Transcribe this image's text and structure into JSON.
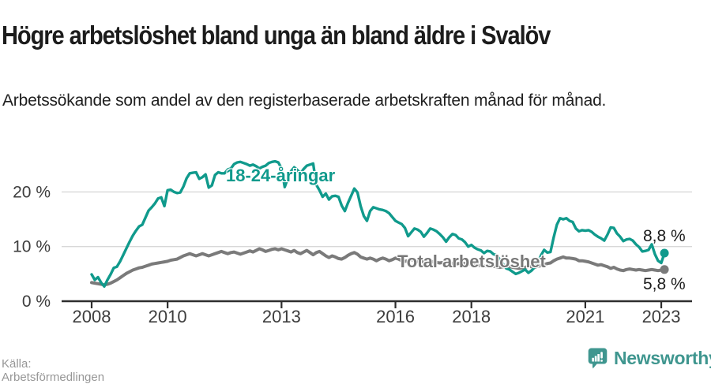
{
  "header": {
    "title": "Högre arbetslöshet bland unga än bland äldre i Svalöv",
    "subtitle": "Arbetssökande som andel av den registerbaserade arbetskraften månad för månad."
  },
  "footer": {
    "source": "Källa: Arbetsförmedlingen",
    "logo_text": "Newsworthy"
  },
  "colors": {
    "teal": "#109a8c",
    "gray": "#7a7a7a",
    "grid": "#d8d8d8",
    "axis": "#2e2e2e",
    "tick_text": "#3d3d3d",
    "logo_teal": "#3f968f"
  },
  "chart_data": {
    "type": "line",
    "title": "Högre arbetslöshet bland unga än bland äldre i Svalöv",
    "subtitle": "Arbetssökande som andel av den registerbaserade arbetskraften månad för månad.",
    "unit": "%",
    "x_start_year": 2008,
    "x_start_month": 1,
    "frequency": "monthly",
    "x_ticks": [
      "2008",
      "2010",
      "2013",
      "2016",
      "2018",
      "2021",
      "2023"
    ],
    "y_ticks": [
      {
        "value": 0,
        "label": "0 %"
      },
      {
        "value": 10,
        "label": "10 %"
      },
      {
        "value": 20,
        "label": "20 %"
      }
    ],
    "ylim": [
      0,
      27
    ],
    "grid": "horizontal-only",
    "legend_position": "inline-on-chart",
    "series": [
      {
        "name": "18-24-åringar",
        "color": "#109a8c",
        "end_value": 8.8,
        "end_label": "8,8 %",
        "values": [
          4.9,
          3.9,
          4.4,
          3.4,
          2.7,
          3.9,
          4.9,
          6.1,
          6.3,
          7.3,
          8.5,
          9.7,
          10.9,
          12.0,
          12.9,
          13.7,
          14.0,
          15.3,
          16.6,
          17.2,
          17.9,
          18.8,
          19.0,
          17.4,
          20.3,
          20.4,
          20.0,
          19.8,
          19.9,
          21.0,
          22.5,
          23.4,
          23.5,
          23.6,
          22.4,
          22.7,
          23.2,
          20.8,
          21.2,
          23.1,
          23.6,
          23.4,
          23.4,
          24.1,
          24.3,
          25.1,
          25.4,
          25.5,
          25.3,
          25.1,
          24.8,
          25.0,
          24.7,
          24.3,
          24.6,
          24.8,
          25.3,
          25.5,
          25.6,
          25.4,
          24.3,
          20.9,
          22.5,
          23.8,
          24.5,
          24.0,
          23.4,
          24.2,
          24.8,
          25.0,
          25.2,
          21.3,
          20.3,
          19.1,
          19.7,
          18.6,
          19.2,
          19.3,
          19.1,
          17.5,
          16.5,
          18.0,
          19.3,
          20.6,
          19.9,
          17.4,
          15.6,
          14.7,
          16.5,
          17.2,
          17.0,
          16.8,
          16.7,
          16.5,
          16.1,
          15.4,
          14.7,
          14.4,
          14.1,
          13.4,
          11.9,
          12.6,
          13.3,
          13.1,
          12.7,
          11.8,
          12.5,
          13.3,
          13.1,
          12.8,
          12.3,
          11.7,
          10.9,
          11.7,
          12.3,
          12.1,
          11.5,
          11.3,
          10.8,
          10.0,
          10.3,
          9.8,
          9.5,
          9.3,
          8.8,
          9.2,
          9.1,
          8.6,
          8.4,
          7.6,
          6.8,
          6.0,
          5.8,
          5.4,
          5.0,
          5.2,
          5.5,
          5.8,
          5.2,
          5.6,
          6.2,
          7.0,
          8.4,
          9.4,
          8.9,
          9.0,
          11.7,
          14.0,
          15.2,
          15.0,
          15.2,
          14.7,
          14.5,
          13.3,
          12.8,
          13.0,
          12.9,
          13.0,
          12.7,
          12.2,
          11.8,
          11.5,
          11.1,
          12.2,
          13.5,
          13.4,
          12.4,
          11.8,
          11.0,
          11.3,
          11.4,
          11.1,
          10.4,
          9.9,
          9.1,
          9.2,
          9.4,
          10.4,
          8.6,
          7.4,
          7.0,
          8.8
        ]
      },
      {
        "name": "Total arbetslöshet",
        "color": "#7a7a7a",
        "end_value": 5.8,
        "end_label": "5,8 %",
        "values": [
          3.4,
          3.3,
          3.2,
          3.1,
          3.0,
          3.1,
          3.3,
          3.6,
          3.9,
          4.3,
          4.7,
          5.1,
          5.4,
          5.7,
          5.9,
          6.1,
          6.2,
          6.4,
          6.6,
          6.8,
          6.9,
          7.0,
          7.1,
          7.2,
          7.3,
          7.5,
          7.6,
          7.7,
          8.0,
          8.3,
          8.5,
          8.7,
          8.5,
          8.3,
          8.5,
          8.7,
          8.5,
          8.3,
          8.5,
          8.7,
          8.9,
          9.1,
          8.9,
          8.7,
          8.9,
          9.0,
          8.8,
          8.6,
          8.8,
          9.0,
          9.2,
          9.0,
          9.3,
          9.6,
          9.4,
          9.1,
          9.3,
          9.5,
          9.6,
          9.4,
          9.6,
          9.4,
          9.2,
          9.0,
          9.3,
          8.9,
          8.7,
          9.0,
          9.3,
          8.9,
          8.5,
          8.9,
          9.1,
          8.7,
          8.3,
          8.0,
          8.3,
          8.1,
          7.8,
          7.7,
          8.0,
          8.4,
          8.7,
          8.9,
          8.6,
          8.1,
          7.9,
          7.7,
          7.9,
          7.7,
          7.4,
          7.7,
          7.9,
          7.7,
          7.4,
          7.6,
          7.9,
          7.7,
          7.4,
          7.3,
          7.4,
          7.6,
          7.5,
          7.3,
          7.2,
          7.3,
          7.4,
          7.3,
          7.2,
          7.1,
          7.0,
          7.1,
          7.2,
          7.1,
          6.9,
          6.8,
          6.9,
          7.0,
          6.9,
          6.8,
          6.9,
          6.7,
          6.6,
          6.5,
          6.4,
          6.5,
          6.6,
          6.4,
          6.3,
          6.2,
          6.3,
          6.4,
          6.3,
          6.2,
          6.1,
          6.0,
          6.1,
          6.2,
          6.4,
          6.3,
          6.2,
          6.4,
          6.5,
          6.7,
          6.9,
          7.0,
          7.4,
          7.7,
          7.9,
          8.1,
          7.9,
          7.9,
          7.8,
          7.7,
          7.4,
          7.4,
          7.3,
          7.2,
          7.0,
          6.8,
          6.6,
          6.7,
          6.5,
          6.3,
          6.0,
          6.2,
          5.9,
          5.7,
          5.6,
          5.8,
          5.9,
          5.8,
          5.7,
          5.8,
          5.7,
          5.6,
          5.7,
          5.8,
          5.7,
          5.6,
          5.7,
          5.8
        ]
      }
    ]
  }
}
